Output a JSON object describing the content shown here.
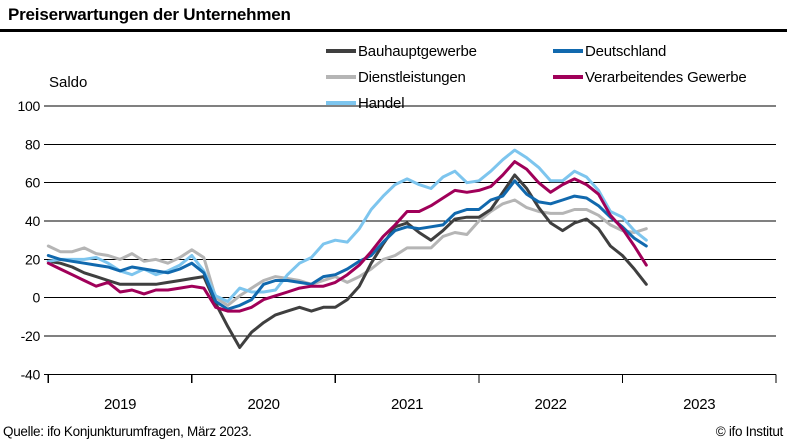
{
  "header": {
    "title": "Preiserwartungen der Unternehmen"
  },
  "footer": {
    "source": "Quelle: ifo Konjunkturumfragen, März 2023.",
    "copyright": "© ifo Institut"
  },
  "legend": {
    "columns": [
      [
        "Bauhauptgewerbe",
        "Dienstleistungen",
        "Handel"
      ],
      [
        "Deutschland",
        "Verarbeitendes Gewerbe"
      ]
    ]
  },
  "chart_data": {
    "type": "line",
    "title": "Preiserwartungen der Unternehmen",
    "ylabel": "Saldo",
    "ylim": [
      -40,
      100
    ],
    "yticks": [
      100,
      80,
      60,
      40,
      20,
      0,
      -20,
      -40
    ],
    "xticks": [
      "2019",
      "2020",
      "2021",
      "2022",
      "2023"
    ],
    "grid": "horizontal",
    "legend_position": "top",
    "x": [
      "2019-01",
      "2019-02",
      "2019-03",
      "2019-04",
      "2019-05",
      "2019-06",
      "2019-07",
      "2019-08",
      "2019-09",
      "2019-10",
      "2019-11",
      "2019-12",
      "2020-01",
      "2020-02",
      "2020-03",
      "2020-04",
      "2020-05",
      "2020-06",
      "2020-07",
      "2020-08",
      "2020-09",
      "2020-10",
      "2020-11",
      "2020-12",
      "2021-01",
      "2021-02",
      "2021-03",
      "2021-04",
      "2021-05",
      "2021-06",
      "2021-07",
      "2021-08",
      "2021-09",
      "2021-10",
      "2021-11",
      "2021-12",
      "2022-01",
      "2022-02",
      "2022-03",
      "2022-04",
      "2022-05",
      "2022-06",
      "2022-07",
      "2022-08",
      "2022-09",
      "2022-10",
      "2022-11",
      "2022-12",
      "2023-01",
      "2023-02",
      "2023-03"
    ],
    "series": [
      {
        "id": "dienstleistungen",
        "name": "Dienstleistungen",
        "color": "#b5b5b5",
        "values": [
          27,
          24,
          24,
          26,
          23,
          22,
          20,
          23,
          19,
          20,
          18,
          21,
          25,
          21,
          0,
          -4,
          1,
          5,
          9,
          11,
          10,
          9,
          7,
          9,
          11,
          8,
          11,
          15,
          20,
          22,
          26,
          26,
          26,
          32,
          34,
          33,
          40,
          45,
          49,
          51,
          47,
          45,
          44,
          44,
          46,
          46,
          43,
          38,
          35,
          34,
          36
        ]
      },
      {
        "id": "bauhauptgewerbe",
        "name": "Bauhauptgewerbe",
        "color": "#3f3f3f",
        "values": [
          19,
          18,
          16,
          13,
          11,
          9,
          7,
          7,
          7,
          7,
          8,
          9,
          10,
          11,
          -3,
          -15,
          -26,
          -18,
          -13,
          -9,
          -7,
          -5,
          -7,
          -5,
          -5,
          -1,
          6,
          18,
          28,
          37,
          39,
          34,
          30,
          35,
          41,
          42,
          42,
          46,
          55,
          64,
          57,
          47,
          39,
          35,
          39,
          41,
          36,
          27,
          22,
          15,
          7
        ]
      },
      {
        "id": "handel",
        "name": "Handel",
        "color": "#7dc5ee",
        "values": [
          19,
          20,
          20,
          20,
          21,
          18,
          14,
          12,
          15,
          12,
          14,
          17,
          22,
          14,
          1,
          -2,
          5,
          3,
          3,
          4,
          12,
          18,
          21,
          28,
          30,
          29,
          36,
          46,
          53,
          59,
          62,
          59,
          57,
          63,
          66,
          60,
          61,
          66,
          72,
          77,
          73,
          68,
          61,
          61,
          66,
          63,
          56,
          45,
          42,
          35,
          30
        ]
      },
      {
        "id": "deutschland",
        "name": "Deutschland",
        "color": "#1169ae",
        "values": [
          22,
          20,
          19,
          18,
          17,
          16,
          14,
          16,
          15,
          14,
          13,
          15,
          18,
          13,
          -2,
          -6,
          -4,
          -1,
          7,
          9,
          9,
          8,
          7,
          11,
          12,
          15,
          19,
          22,
          29,
          35,
          37,
          36,
          37,
          38,
          44,
          46,
          46,
          51,
          53,
          61,
          54,
          50,
          49,
          51,
          53,
          52,
          48,
          42,
          37,
          31,
          27
        ]
      },
      {
        "id": "verarbeitendes-gewerbe",
        "name": "Verarbeitendes Gewerbe",
        "color": "#a00059",
        "values": [
          18,
          15,
          12,
          9,
          6,
          8,
          3,
          4,
          2,
          4,
          4,
          5,
          6,
          5,
          -5,
          -7,
          -7,
          -5,
          -1,
          1,
          3,
          5,
          6,
          6,
          8,
          12,
          17,
          24,
          32,
          38,
          45,
          45,
          48,
          52,
          56,
          55,
          56,
          58,
          64,
          71,
          67,
          60,
          55,
          59,
          62,
          59,
          54,
          43,
          36,
          27,
          17
        ]
      }
    ]
  }
}
